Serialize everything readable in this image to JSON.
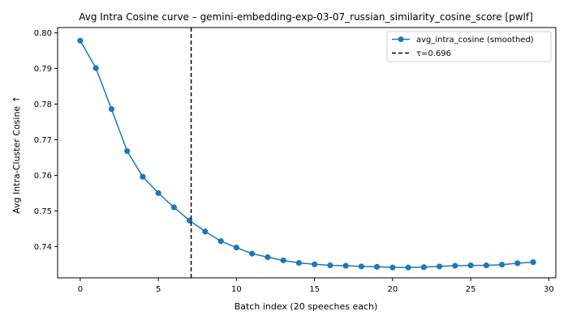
{
  "chart_data": {
    "type": "line",
    "title": "Avg Intra Cosine curve – gemini-embedding-exp-03-07_russian_similarity_cosine_score [pwlf]",
    "xlabel": "Batch index (20 speeches each)",
    "ylabel": "Avg Intra-Cluster Cosine ↑",
    "xlim": [
      -1.45,
      30.45
    ],
    "ylim": [
      0.7312,
      0.8015
    ],
    "xticks": [
      0,
      5,
      10,
      15,
      20,
      25,
      30
    ],
    "yticks": [
      0.74,
      0.75,
      0.76,
      0.77,
      0.78,
      0.79,
      0.8
    ],
    "ytick_labels": [
      "0.74",
      "0.75",
      "0.76",
      "0.77",
      "0.78",
      "0.79",
      "0.80"
    ],
    "grid": false,
    "legend_position": "top-right",
    "series": [
      {
        "name": "avg_intra_cosine (smoothed)",
        "color": "#1f77b4",
        "marker": "circle",
        "x": [
          0,
          1,
          2,
          3,
          4,
          5,
          6,
          7,
          8,
          9,
          10,
          11,
          12,
          13,
          14,
          15,
          16,
          17,
          18,
          19,
          20,
          21,
          22,
          23,
          24,
          25,
          26,
          27,
          28,
          29
        ],
        "y": [
          0.7978,
          0.7901,
          0.7786,
          0.7668,
          0.7596,
          0.755,
          0.751,
          0.7473,
          0.7442,
          0.7415,
          0.7397,
          0.738,
          0.737,
          0.7361,
          0.7354,
          0.735,
          0.7347,
          0.7346,
          0.7344,
          0.7343,
          0.7341,
          0.7341,
          0.7342,
          0.7344,
          0.7346,
          0.7347,
          0.7347,
          0.7349,
          0.7353,
          0.7356
        ]
      }
    ],
    "vline": {
      "name": "τ=0.696",
      "x": 7.1,
      "color": "#000000",
      "style": "dashed"
    }
  }
}
